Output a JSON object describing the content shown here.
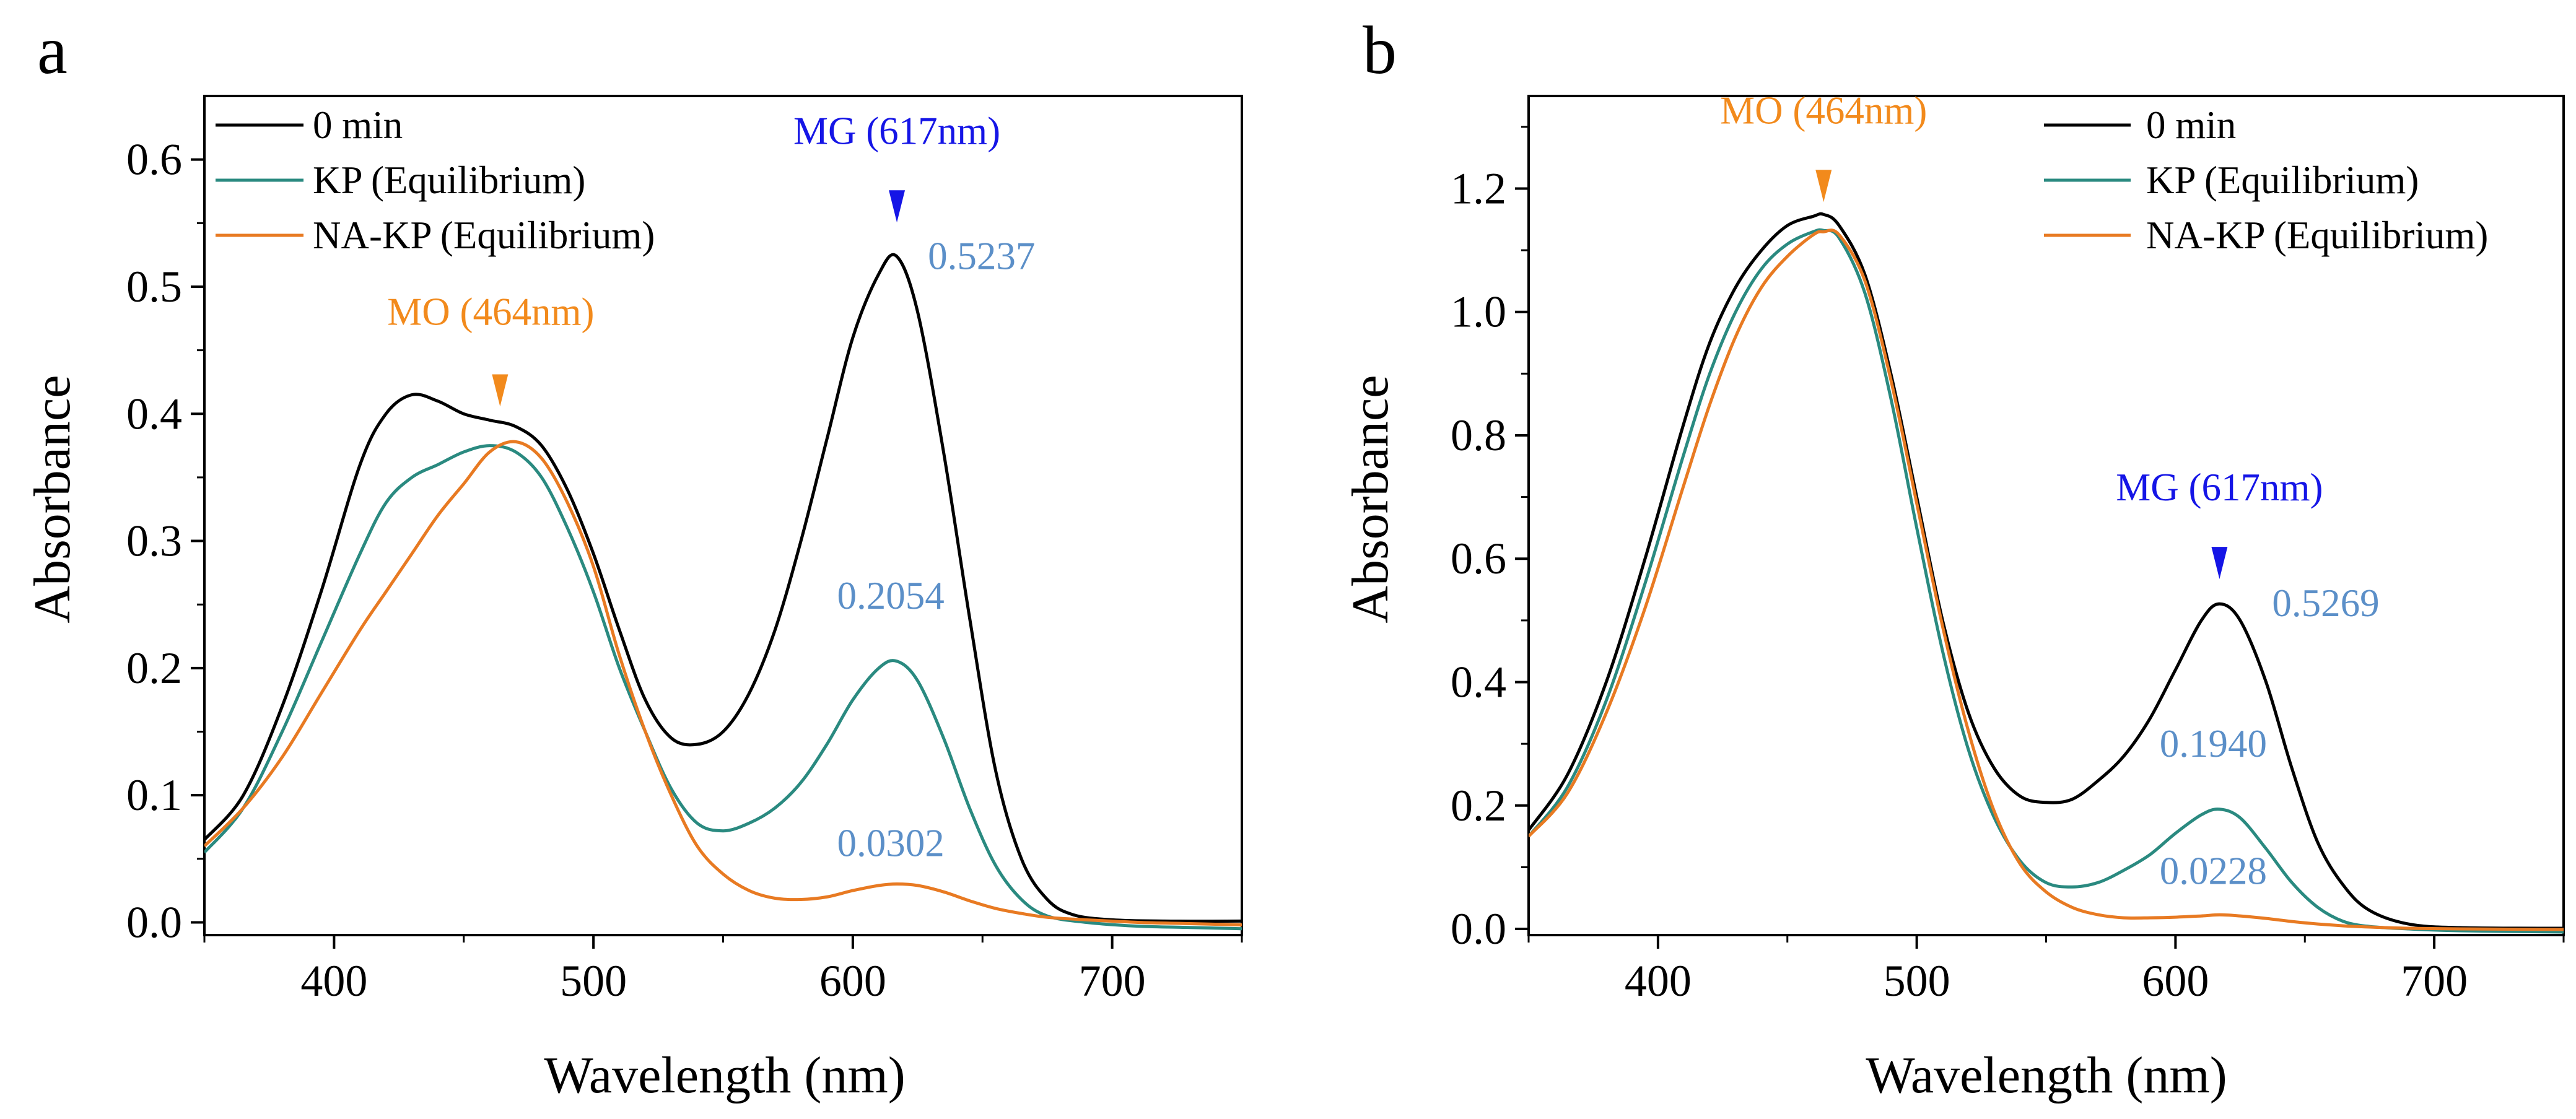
{
  "chart_data": [
    {
      "type": "line",
      "panel": "a",
      "xlabel": "Wavelength (nm)",
      "ylabel": "Absorbance",
      "xlim": [
        350,
        750
      ],
      "ylim": [
        -0.01,
        0.65
      ],
      "xticks": [
        400,
        500,
        600,
        700
      ],
      "xtick_labels": [
        "400",
        "500",
        "600",
        "700"
      ],
      "yticks": [
        0.0,
        0.1,
        0.2,
        0.3,
        0.4,
        0.5,
        0.6
      ],
      "ytick_labels": [
        "0.0",
        "0.1",
        "0.2",
        "0.3",
        "0.4",
        "0.5",
        "0.6"
      ],
      "legend_position": "top-left",
      "series": [
        {
          "name": "0 min",
          "color": "#000000",
          "x": [
            350,
            365,
            380,
            395,
            410,
            420,
            430,
            440,
            450,
            460,
            470,
            480,
            490,
            500,
            510,
            520,
            530,
            540,
            550,
            560,
            570,
            580,
            590,
            600,
            610,
            617,
            625,
            635,
            645,
            655,
            665,
            675,
            685,
            700,
            720,
            750
          ],
          "y": [
            0.065,
            0.1,
            0.17,
            0.26,
            0.36,
            0.4,
            0.415,
            0.41,
            0.4,
            0.395,
            0.39,
            0.375,
            0.34,
            0.29,
            0.23,
            0.175,
            0.145,
            0.14,
            0.15,
            0.18,
            0.23,
            0.3,
            0.38,
            0.46,
            0.51,
            0.5237,
            0.48,
            0.37,
            0.24,
            0.12,
            0.05,
            0.018,
            0.006,
            0.002,
            0.001,
            0.001
          ]
        },
        {
          "name": "KP (Equilibrium)",
          "color": "#2a8a80",
          "x": [
            350,
            365,
            380,
            395,
            410,
            420,
            430,
            440,
            450,
            460,
            470,
            480,
            490,
            500,
            510,
            520,
            530,
            540,
            550,
            560,
            570,
            580,
            590,
            600,
            610,
            617,
            625,
            635,
            645,
            655,
            665,
            675,
            690,
            710,
            730,
            750
          ],
          "y": [
            0.055,
            0.09,
            0.15,
            0.22,
            0.29,
            0.33,
            0.35,
            0.36,
            0.37,
            0.375,
            0.37,
            0.35,
            0.31,
            0.26,
            0.2,
            0.15,
            0.105,
            0.078,
            0.072,
            0.078,
            0.09,
            0.11,
            0.14,
            0.175,
            0.2,
            0.2054,
            0.19,
            0.145,
            0.09,
            0.045,
            0.018,
            0.005,
            0.0,
            -0.003,
            -0.004,
            -0.005
          ]
        },
        {
          "name": "NA-KP (Equilibrium)",
          "color": "#e87a22",
          "x": [
            350,
            365,
            380,
            395,
            410,
            420,
            430,
            440,
            450,
            460,
            470,
            480,
            490,
            500,
            510,
            520,
            530,
            540,
            550,
            560,
            570,
            580,
            590,
            600,
            610,
            617,
            625,
            635,
            645,
            655,
            665,
            675,
            690,
            710,
            730,
            750
          ],
          "y": [
            0.06,
            0.09,
            0.13,
            0.18,
            0.23,
            0.26,
            0.29,
            0.32,
            0.345,
            0.37,
            0.378,
            0.365,
            0.33,
            0.28,
            0.21,
            0.15,
            0.1,
            0.06,
            0.038,
            0.025,
            0.019,
            0.018,
            0.02,
            0.025,
            0.029,
            0.0302,
            0.029,
            0.024,
            0.017,
            0.011,
            0.007,
            0.004,
            0.002,
            0.0,
            -0.001,
            -0.002
          ]
        }
      ],
      "annotations": [
        {
          "text": "MG (617nm)",
          "x": 617,
          "y": 0.5237,
          "color": "#1515e6",
          "role": "peak-marker"
        },
        {
          "text": "MO (464nm)",
          "x": 464,
          "y": 0.396,
          "color": "#f28a1c",
          "role": "peak-marker"
        },
        {
          "text": "0.5237",
          "x": 617,
          "y": 0.5237,
          "color": "#5b8fc8",
          "role": "value"
        },
        {
          "text": "0.2054",
          "x": 617,
          "y": 0.2054,
          "color": "#5b8fc8",
          "role": "value"
        },
        {
          "text": "0.0302",
          "x": 617,
          "y": 0.0302,
          "color": "#5b8fc8",
          "role": "value"
        }
      ]
    },
    {
      "type": "line",
      "panel": "b",
      "xlabel": "Wavelength (nm)",
      "ylabel": "Absorbance",
      "xlim": [
        350,
        750
      ],
      "ylim": [
        -0.01,
        1.35
      ],
      "xticks": [
        400,
        500,
        600,
        700
      ],
      "xtick_labels": [
        "400",
        "500",
        "600",
        "700"
      ],
      "yticks": [
        0.0,
        0.2,
        0.4,
        0.6,
        0.8,
        1.0,
        1.2
      ],
      "ytick_labels": [
        "0.0",
        "0.2",
        "0.4",
        "0.6",
        "0.8",
        "1.0",
        "1.2"
      ],
      "legend_position": "top-right",
      "series": [
        {
          "name": "0 min",
          "color": "#000000",
          "x": [
            350,
            365,
            380,
            395,
            410,
            420,
            430,
            440,
            450,
            460,
            464,
            470,
            480,
            490,
            500,
            510,
            520,
            530,
            540,
            550,
            560,
            570,
            580,
            590,
            600,
            610,
            617,
            625,
            635,
            645,
            655,
            665,
            675,
            690,
            710,
            750
          ],
          "y": [
            0.16,
            0.25,
            0.4,
            0.6,
            0.82,
            0.95,
            1.04,
            1.1,
            1.14,
            1.155,
            1.158,
            1.14,
            1.06,
            0.9,
            0.7,
            0.5,
            0.35,
            0.26,
            0.215,
            0.205,
            0.21,
            0.24,
            0.28,
            0.34,
            0.42,
            0.5,
            0.5269,
            0.5,
            0.4,
            0.26,
            0.14,
            0.07,
            0.03,
            0.008,
            0.002,
            0.001
          ]
        },
        {
          "name": "KP (Equilibrium)",
          "color": "#2a8a80",
          "x": [
            350,
            365,
            380,
            395,
            410,
            420,
            430,
            440,
            450,
            460,
            464,
            470,
            480,
            490,
            500,
            510,
            520,
            530,
            540,
            550,
            560,
            570,
            580,
            590,
            600,
            610,
            617,
            625,
            635,
            645,
            655,
            665,
            675,
            690,
            710,
            750
          ],
          "y": [
            0.15,
            0.23,
            0.37,
            0.56,
            0.77,
            0.9,
            1.0,
            1.07,
            1.11,
            1.13,
            1.132,
            1.12,
            1.03,
            0.86,
            0.65,
            0.45,
            0.29,
            0.18,
            0.11,
            0.075,
            0.068,
            0.075,
            0.095,
            0.12,
            0.155,
            0.185,
            0.194,
            0.18,
            0.13,
            0.075,
            0.035,
            0.012,
            0.004,
            0.0,
            -0.003,
            -0.005
          ]
        },
        {
          "name": "NA-KP (Equilibrium)",
          "color": "#e87a22",
          "x": [
            350,
            365,
            380,
            395,
            410,
            420,
            430,
            440,
            450,
            460,
            464,
            470,
            480,
            490,
            500,
            510,
            520,
            530,
            540,
            550,
            560,
            570,
            580,
            590,
            600,
            610,
            617,
            625,
            635,
            645,
            655,
            665,
            675,
            690,
            710,
            750
          ],
          "y": [
            0.15,
            0.22,
            0.35,
            0.52,
            0.72,
            0.85,
            0.96,
            1.04,
            1.09,
            1.125,
            1.13,
            1.125,
            1.05,
            0.89,
            0.69,
            0.49,
            0.32,
            0.19,
            0.105,
            0.06,
            0.035,
            0.023,
            0.018,
            0.018,
            0.019,
            0.021,
            0.0228,
            0.021,
            0.017,
            0.012,
            0.008,
            0.005,
            0.003,
            0.001,
            0.0,
            -0.001
          ]
        }
      ],
      "annotations": [
        {
          "text": "MO (464nm)",
          "x": 464,
          "y": 1.158,
          "color": "#f28a1c",
          "role": "peak-marker"
        },
        {
          "text": "MG (617nm)",
          "x": 617,
          "y": 0.5269,
          "color": "#1515e6",
          "role": "peak-marker"
        },
        {
          "text": "0.5269",
          "x": 617,
          "y": 0.5269,
          "color": "#5b8fc8",
          "role": "value"
        },
        {
          "text": "0.1940",
          "x": 617,
          "y": 0.194,
          "color": "#5b8fc8",
          "role": "value"
        },
        {
          "text": "0.0228",
          "x": 617,
          "y": 0.0228,
          "color": "#5b8fc8",
          "role": "value"
        }
      ]
    }
  ]
}
